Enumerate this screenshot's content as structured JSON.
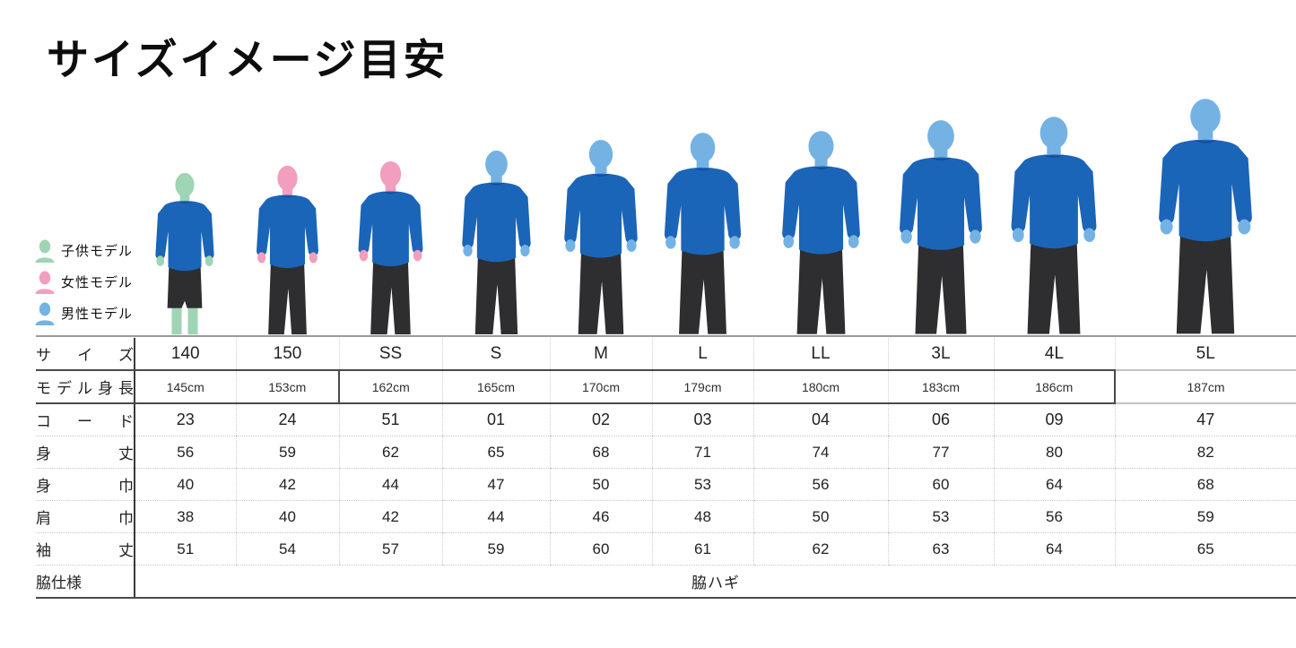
{
  "title": "サイズイメージ目安",
  "legend": {
    "items": [
      {
        "name": "child-model",
        "label": "子供モデル",
        "color": "#9fd4b4"
      },
      {
        "name": "female-model",
        "label": "女性モデル",
        "color": "#f29ebf"
      },
      {
        "name": "male-model",
        "label": "男性モデル",
        "color": "#74b2e4"
      }
    ]
  },
  "colors": {
    "shirt": "#1b65b8",
    "collar": "#124d92",
    "pants": "#2e2e30",
    "child_skin": "#9fd4b4",
    "female_skin": "#f29ebf",
    "male_skin": "#74b2e4",
    "teal_text": "#3aa58e",
    "blue_text": "#3a8ccc"
  },
  "figures": [
    {
      "size": "140",
      "model": "child",
      "height": "145cm"
    },
    {
      "size": "150",
      "model": "female",
      "height": "153cm"
    },
    {
      "size": "SS",
      "model": "female",
      "height": "162cm"
    },
    {
      "size": "S",
      "model": "male",
      "height": "165cm"
    },
    {
      "size": "M",
      "model": "male",
      "height": "170cm"
    },
    {
      "size": "L",
      "model": "male",
      "height": "179cm"
    },
    {
      "size": "LL",
      "model": "male",
      "height": "180cm"
    },
    {
      "size": "3L",
      "model": "male",
      "height": "183cm"
    },
    {
      "size": "4L",
      "model": "male",
      "height": "186cm"
    },
    {
      "size": "5L",
      "model": "male",
      "height": "187cm"
    }
  ],
  "table": {
    "rows": [
      {
        "key": "size",
        "label": "サイズ",
        "values": [
          "140",
          "150",
          "SS",
          "S",
          "M",
          "L",
          "LL",
          "3L",
          "4L",
          "5L"
        ],
        "value_colors": [
          "teal",
          "teal",
          "blue",
          "blue",
          "blue",
          "blue",
          "blue",
          "blue",
          "blue",
          "blue"
        ]
      },
      {
        "key": "model_height",
        "label": "モデル身長",
        "values": [
          "145cm",
          "153cm",
          "162cm",
          "165cm",
          "170cm",
          "179cm",
          "180cm",
          "183cm",
          "186cm",
          "187cm"
        ]
      },
      {
        "key": "code",
        "label": "コード",
        "values": [
          "23",
          "24",
          "51",
          "01",
          "02",
          "03",
          "04",
          "06",
          "09",
          "47"
        ],
        "value_colors": [
          "teal",
          "teal",
          "blue",
          "blue",
          "blue",
          "blue",
          "blue",
          "blue",
          "blue",
          "blue"
        ]
      },
      {
        "key": "body_length",
        "label": "身丈",
        "values": [
          "56",
          "59",
          "62",
          "65",
          "68",
          "71",
          "74",
          "77",
          "80",
          "82"
        ]
      },
      {
        "key": "body_width",
        "label": "身巾",
        "values": [
          "40",
          "42",
          "44",
          "47",
          "50",
          "53",
          "56",
          "60",
          "64",
          "68"
        ]
      },
      {
        "key": "shoulder_width",
        "label": "肩巾",
        "values": [
          "38",
          "40",
          "42",
          "44",
          "46",
          "48",
          "50",
          "53",
          "56",
          "59"
        ]
      },
      {
        "key": "sleeve_length",
        "label": "袖丈",
        "values": [
          "51",
          "54",
          "57",
          "59",
          "60",
          "61",
          "62",
          "63",
          "64",
          "65"
        ]
      },
      {
        "key": "side_spec",
        "label": "脇仕様",
        "span_value": "脇ハギ"
      }
    ]
  }
}
